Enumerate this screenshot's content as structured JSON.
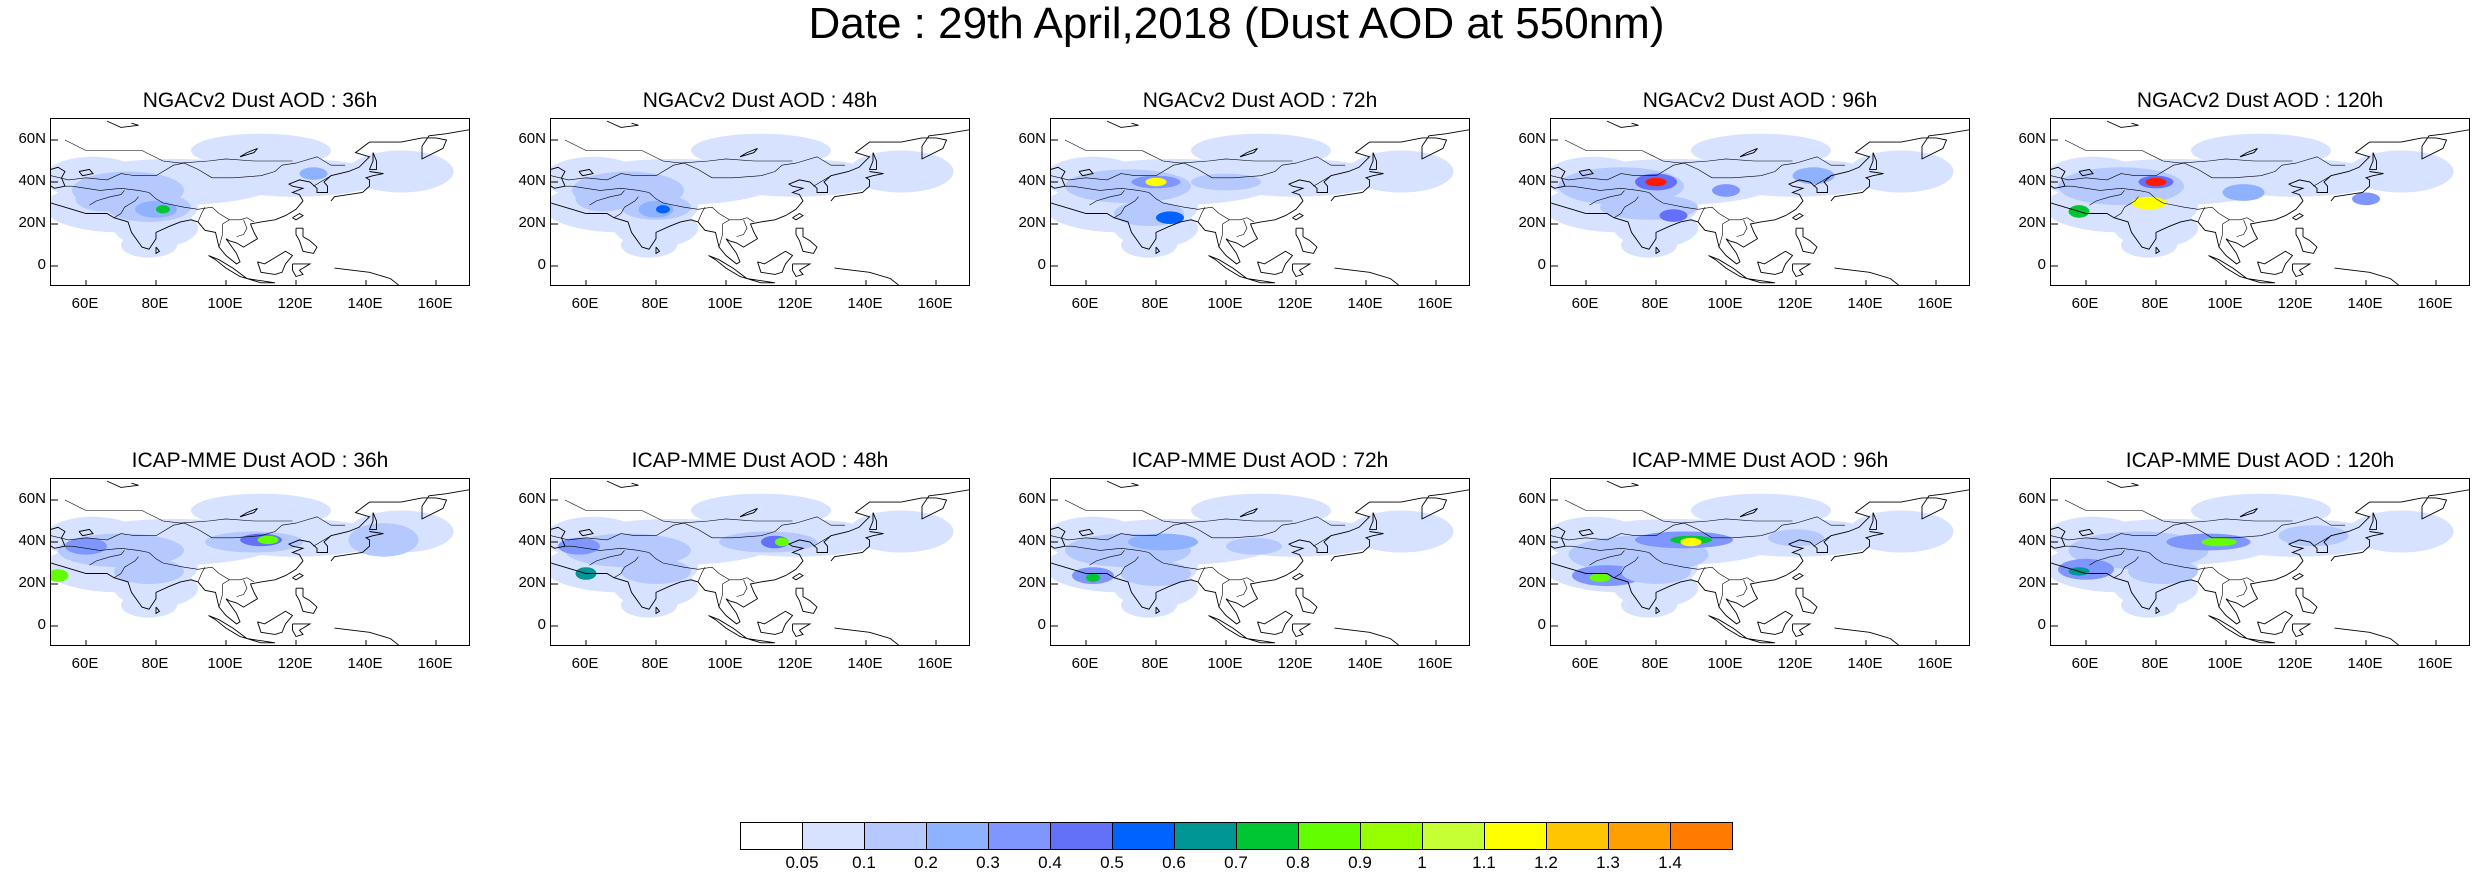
{
  "title": "Date : 29th April,2018 (Dust AOD at 550nm)",
  "axes": {
    "lat_ticks": [
      "60N",
      "40N",
      "20N",
      "0"
    ],
    "lon_ticks": [
      "60E",
      "80E",
      "100E",
      "120E",
      "140E",
      "160E"
    ]
  },
  "panels": [
    {
      "id": "ngac-36h",
      "title": "NGACv2 Dust AOD : 36h"
    },
    {
      "id": "ngac-48h",
      "title": "NGACv2 Dust AOD : 48h"
    },
    {
      "id": "ngac-72h",
      "title": "NGACv2 Dust AOD : 72h"
    },
    {
      "id": "ngac-96h",
      "title": "NGACv2 Dust AOD : 96h"
    },
    {
      "id": "ngac-120h",
      "title": "NGACv2 Dust AOD : 120h"
    },
    {
      "id": "icap-36h",
      "title": "ICAP-MME Dust AOD : 36h"
    },
    {
      "id": "icap-48h",
      "title": "ICAP-MME Dust AOD : 48h"
    },
    {
      "id": "icap-72h",
      "title": "ICAP-MME Dust AOD : 72h"
    },
    {
      "id": "icap-96h",
      "title": "ICAP-MME Dust AOD : 96h"
    },
    {
      "id": "icap-120h",
      "title": "ICAP-MME Dust AOD : 120h"
    }
  ],
  "colorbar": {
    "labels": [
      "0.05",
      "0.1",
      "0.2",
      "0.3",
      "0.4",
      "0.5",
      "0.6",
      "0.7",
      "0.8",
      "0.9",
      "1",
      "1.1",
      "1.2",
      "1.3",
      "1.4"
    ],
    "colors": [
      "#ffffff",
      "#d6e2ff",
      "#b5c9ff",
      "#8eb2ff",
      "#7f96ff",
      "#6370f8",
      "#0063ff",
      "#009696",
      "#00c633",
      "#63ff00",
      "#96ff00",
      "#c6ff33",
      "#ffff00",
      "#ffc600",
      "#ffa000",
      "#ff7c00",
      "#ff1900"
    ]
  }
}
